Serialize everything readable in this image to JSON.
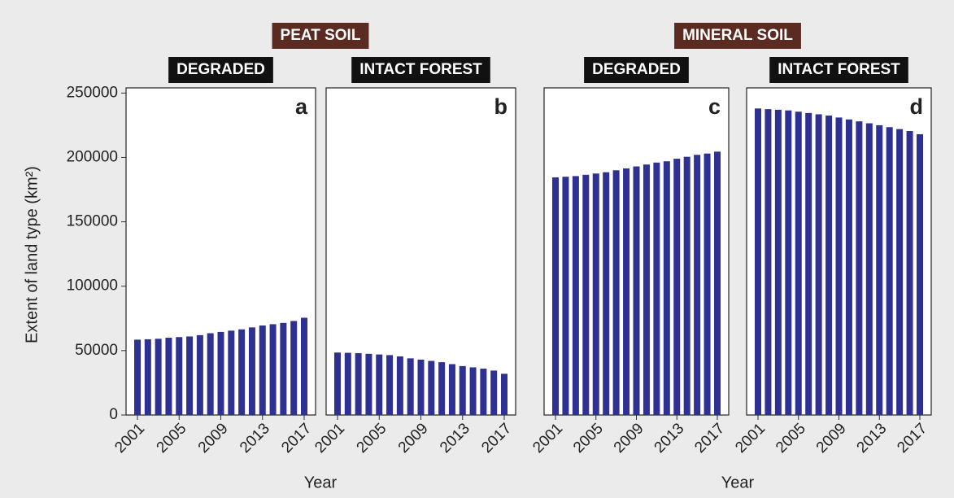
{
  "y_axis": {
    "label": "Extent of land type (km²)",
    "ylim": [
      0,
      254000
    ],
    "yticks": [
      0,
      50000,
      100000,
      150000,
      200000,
      250000
    ]
  },
  "groups": [
    {
      "title": "PEAT SOIL",
      "xlabel": "Year"
    },
    {
      "title": "MINERAL SOIL",
      "xlabel": "Year"
    }
  ],
  "chart_data": [
    {
      "type": "bar",
      "title": "DEGRADED",
      "panel_label": "a",
      "color": "#2e3192",
      "categories": [
        "2001",
        null,
        null,
        null,
        "2005",
        null,
        null,
        null,
        "2009",
        null,
        null,
        null,
        "2013",
        null,
        null,
        null,
        "2017"
      ],
      "values": [
        58500,
        58800,
        59200,
        60000,
        60500,
        61000,
        62000,
        63500,
        64500,
        65500,
        66500,
        68000,
        69500,
        70500,
        71500,
        73000,
        75500
      ]
    },
    {
      "type": "bar",
      "title": "INTACT FOREST",
      "panel_label": "b",
      "color": "#2e3192",
      "categories": [
        "2001",
        null,
        null,
        null,
        "2005",
        null,
        null,
        null,
        "2009",
        null,
        null,
        null,
        "2013",
        null,
        null,
        null,
        "2017"
      ],
      "values": [
        48500,
        48300,
        48000,
        47500,
        47000,
        46500,
        45500,
        44000,
        43000,
        42000,
        41000,
        39500,
        38000,
        37000,
        36000,
        34500,
        32000
      ]
    },
    {
      "type": "bar",
      "title": "DEGRADED",
      "panel_label": "c",
      "color": "#2e3192",
      "categories": [
        "2001",
        null,
        null,
        null,
        "2005",
        null,
        null,
        null,
        "2009",
        null,
        null,
        null,
        "2013",
        null,
        null,
        null,
        "2017"
      ],
      "values": [
        184500,
        185000,
        185500,
        186500,
        187500,
        188500,
        190000,
        191500,
        193000,
        194500,
        196000,
        197000,
        199000,
        200500,
        202000,
        203000,
        204500
      ]
    },
    {
      "type": "bar",
      "title": "INTACT FOREST",
      "panel_label": "d",
      "color": "#2e3192",
      "categories": [
        "2001",
        null,
        null,
        null,
        "2005",
        null,
        null,
        null,
        "2009",
        null,
        null,
        null,
        "2013",
        null,
        null,
        null,
        "2017"
      ],
      "values": [
        238000,
        237500,
        237000,
        236500,
        235500,
        234500,
        233500,
        232500,
        231000,
        229500,
        228000,
        226500,
        225000,
        223500,
        222000,
        220500,
        218000
      ]
    }
  ]
}
